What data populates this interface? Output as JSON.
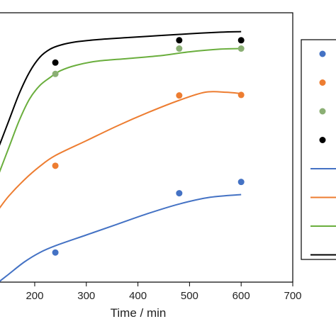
{
  "chart_data": {
    "type": "scatter",
    "title": "",
    "xlabel": "Time / min",
    "ylabel": "",
    "xlim": [
      130,
      700
    ],
    "ylim": [
      0,
      1
    ],
    "grid": false,
    "legend_placement": "right",
    "x_ticks": [
      "200",
      "300",
      "400",
      "500",
      "600",
      "700"
    ],
    "series": [
      {
        "color": "#4472C4",
        "kind": "points",
        "x": [
          240,
          480,
          600
        ],
        "y": [
          0.11,
          0.33,
          0.372
        ]
      },
      {
        "color": "#ED7D31",
        "kind": "points",
        "x": [
          240,
          480,
          600
        ],
        "y": [
          0.432,
          0.693,
          0.695
        ]
      },
      {
        "color": "#8BAF74",
        "kind": "points",
        "x": [
          240,
          480,
          600
        ],
        "y": [
          0.773,
          0.867,
          0.867
        ]
      },
      {
        "color": "#000000",
        "kind": "points",
        "x": [
          240,
          480,
          600
        ],
        "y": [
          0.815,
          0.898,
          0.898
        ]
      },
      {
        "color": "#4472C4",
        "kind": "line",
        "x": [
          130,
          150,
          180,
          210,
          240,
          300,
          360,
          420,
          480,
          540,
          600
        ],
        "y": [
          0.0,
          0.03,
          0.075,
          0.11,
          0.135,
          0.175,
          0.215,
          0.255,
          0.29,
          0.315,
          0.325
        ]
      },
      {
        "color": "#ED7D31",
        "kind": "line",
        "x": [
          130,
          150,
          180,
          210,
          240,
          300,
          360,
          420,
          480,
          530,
          570,
          600
        ],
        "y": [
          0.27,
          0.32,
          0.38,
          0.43,
          0.47,
          0.525,
          0.58,
          0.63,
          0.675,
          0.705,
          0.705,
          0.7
        ]
      },
      {
        "color": "#6AAE3D",
        "kind": "line",
        "x": [
          130,
          150,
          170,
          190,
          210,
          230,
          250,
          280,
          320,
          380,
          440,
          500,
          560,
          600
        ],
        "y": [
          0.4,
          0.5,
          0.6,
          0.68,
          0.73,
          0.76,
          0.785,
          0.805,
          0.82,
          0.83,
          0.84,
          0.855,
          0.865,
          0.867
        ]
      },
      {
        "color": "#000000",
        "kind": "line",
        "x": [
          130,
          150,
          170,
          190,
          210,
          230,
          250,
          280,
          320,
          380,
          440,
          500,
          560,
          600
        ],
        "y": [
          0.5,
          0.6,
          0.7,
          0.78,
          0.835,
          0.865,
          0.88,
          0.892,
          0.9,
          0.908,
          0.915,
          0.922,
          0.928,
          0.93
        ]
      }
    ],
    "legend": [
      {
        "color": "#4472C4",
        "kind": "marker"
      },
      {
        "color": "#ED7D31",
        "kind": "marker"
      },
      {
        "color": "#8BAF74",
        "kind": "marker"
      },
      {
        "color": "#000000",
        "kind": "marker"
      },
      {
        "color": "#4472C4",
        "kind": "line"
      },
      {
        "color": "#ED7D31",
        "kind": "line"
      },
      {
        "color": "#6AAE3D",
        "kind": "line"
      },
      {
        "color": "#000000",
        "kind": "line"
      }
    ]
  }
}
